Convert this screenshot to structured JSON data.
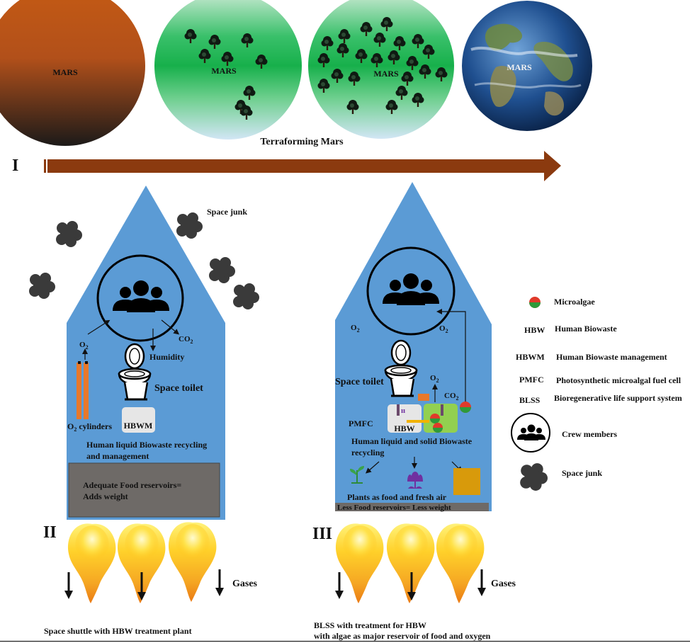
{
  "planets": [
    {
      "label": "MARS",
      "stage": "barren"
    },
    {
      "label": "MARS",
      "stage": "early-vegetation"
    },
    {
      "label": "MARS",
      "stage": "dense-vegetation"
    },
    {
      "label": "MARS",
      "stage": "earth-like"
    }
  ],
  "terraforming_caption": "Terraforming Mars",
  "roman_numerals": {
    "one": "I",
    "two": "II",
    "three": "III"
  },
  "shuttle_left": {
    "space_junk": "Space junk",
    "o2": "O",
    "o2_sub": "2",
    "co2": "CO",
    "co2_sub": "2",
    "humidity": "Humidity",
    "space_toilet": "Space toilet",
    "o2_cylinders": "O",
    "o2_cylinders_sub": "2",
    "o2_cylinders_rest": " cylinders",
    "hbwm": "HBWM",
    "recycling_line1": "Human liquid Biowaste recycling",
    "recycling_line2": "and management",
    "food_line1": "Adequate Food reservoirs=",
    "food_line2": "Adds weight",
    "gases": "Gases",
    "caption": "Space shuttle with HBW treatment plant"
  },
  "shuttle_right": {
    "o2_left": "O",
    "o2_left_sub": "2",
    "o2_top": "O",
    "o2_top_sub": "2",
    "space_toilet": "Space toilet",
    "o2": "O",
    "o2_sub": "2",
    "co2": "CO",
    "co2_sub": "2",
    "pmfc": "PMFC",
    "hbw": "HBW",
    "recycling_line1": "Human liquid and solid Biowaste",
    "recycling_line2": "recycling",
    "plants": "Plants as food and fresh air",
    "food": "Less Food reservoirs= Less weight",
    "gases": "Gases",
    "caption_line1": "BLSS with treatment for HBW",
    "caption_line2": "with algae as major reservoir of food and oxygen"
  },
  "legend": [
    {
      "abbr": "",
      "text": "Microalgae",
      "icon": "microalgae-icon"
    },
    {
      "abbr": "HBW",
      "text": "Human Biowaste"
    },
    {
      "abbr": "HBWM",
      "text": "Human Biowaste management"
    },
    {
      "abbr": "PMFC",
      "text": "Photosynthetic microalgal fuel cell"
    },
    {
      "abbr": "BLSS",
      "text": "Bioregenerative life support system"
    },
    {
      "abbr": "",
      "text": "Crew members",
      "icon": "crew-icon"
    },
    {
      "abbr": "",
      "text": "Space junk",
      "icon": "space-junk-icon"
    }
  ],
  "colors": {
    "shuttle_blue": "#5b9bd5",
    "arrow_brown": "#8b3a0f",
    "mars_orange": "#c45a14",
    "food_gray": "#6e6a67",
    "flame_yellow": "#ffd12a",
    "flame_orange": "#f28a1a",
    "o2_cylinder": "#e8782a"
  }
}
